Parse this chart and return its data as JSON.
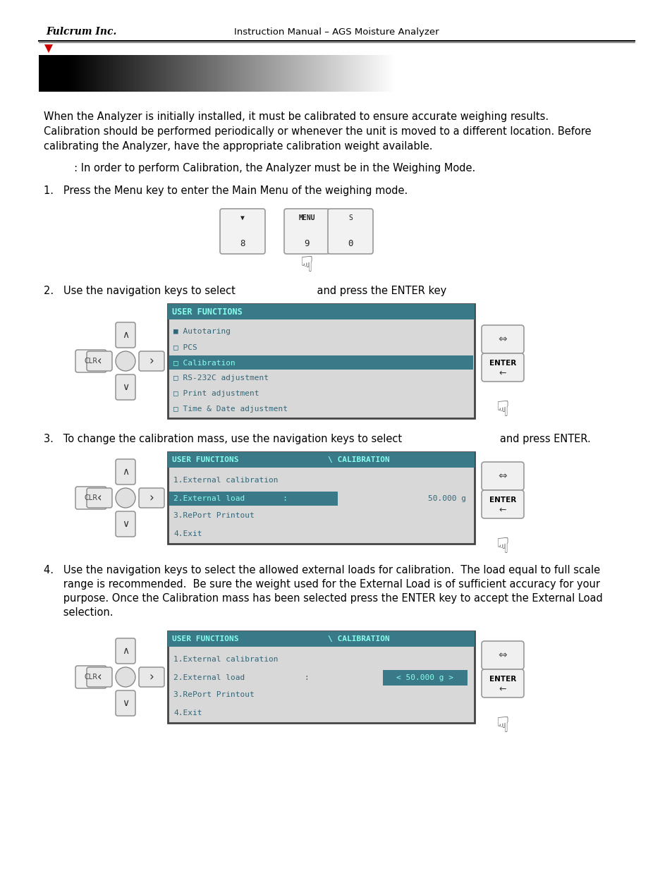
{
  "page_bg": "#ffffff",
  "header_company": "Fulcrum Inc.",
  "header_title": "Instruction Manual – AGS Moisture Analyzer",
  "header_triangle_color": "#cc0000",
  "para1_lines": [
    "When the Analyzer is initially installed, it must be calibrated to ensure accurate weighing results.",
    "Calibration should be performed periodically or whenever the unit is moved to a different location. Before",
    "calibrating the Analyzer, have the appropriate calibration weight available."
  ],
  "note_text": "     : In order to perform Calibration, the Analyzer must be in the Weighing Mode.",
  "step1_text": "1.   Press the Menu key to enter the Main Menu of the weighing mode.",
  "step2_text": "2.   Use the navigation keys to select                         and press the ENTER key",
  "step3_text": "3.   To change the calibration mass, use the navigation keys to select                              and press ENTER.",
  "step4_lines": [
    "4.   Use the navigation keys to select the allowed external loads for calibration.  The load equal to full scale",
    "      range is recommended.  Be sure the weight used for the External Load is of sufficient accuracy for your",
    "      purpose. Once the Calibration mass has been selected press the ENTER key to accept the External Load",
    "      selection."
  ],
  "body_fs": 10.5,
  "header_fs": 9.5,
  "screen_bg": "#d8d8d8",
  "screen_hdr_bg": "#3a7a88",
  "screen_hdr_text": "#88ffee",
  "screen_sel_bg": "#3a7a88",
  "screen_sel_text": "#88ffee",
  "screen_text": "#336677",
  "screen_border": "#444444",
  "nav_fill": "#f0f0f0",
  "nav_edge": "#888888",
  "btn_fill": "#f0f0f0",
  "btn_edge": "#888888"
}
